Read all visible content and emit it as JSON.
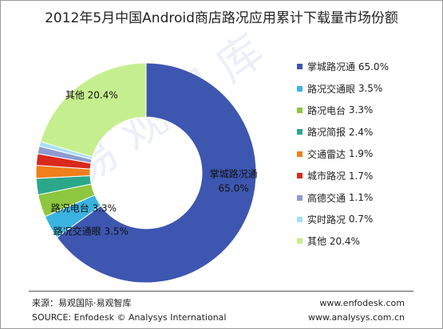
{
  "chart_data": {
    "type": "pie",
    "style": "donut",
    "title": "2012年5月中国Android商店路况应用累计下载量市场份额",
    "slices": [
      {
        "name": "掌城路况通",
        "value": 65.0,
        "label": "65.0%",
        "color": "#3D56B0"
      },
      {
        "name": "路况交通眼",
        "value": 3.5,
        "label": "3.5%",
        "color": "#3BB3E0"
      },
      {
        "name": "路况电台",
        "value": 3.3,
        "label": "3.3%",
        "color": "#8DC63F"
      },
      {
        "name": "路况简报",
        "value": 2.4,
        "label": "2.4%",
        "color": "#2BA88A"
      },
      {
        "name": "交通雷达",
        "value": 1.9,
        "label": "1.9%",
        "color": "#F07F1C"
      },
      {
        "name": "城市路况",
        "value": 1.7,
        "label": "1.7%",
        "color": "#D9291C"
      },
      {
        "name": "高德交通",
        "value": 1.1,
        "label": "1.1%",
        "color": "#8E9BD1"
      },
      {
        "name": "实时路况",
        "value": 0.7,
        "label": "0.7%",
        "color": "#A6E0F5"
      },
      {
        "name": "其他",
        "value": 20.4,
        "label": "20.4%",
        "color": "#C5EF8E"
      }
    ],
    "legend_position": "right",
    "slice_labels": [
      {
        "text": "掌城路况通",
        "text2": "65.0%"
      },
      {
        "text": "路况电台 3.3%"
      },
      {
        "text": "路况交通眼 3.5%"
      },
      {
        "text": "其他 20.4%"
      }
    ]
  },
  "footer": {
    "source_cn": "来源：易观国际·易观智库",
    "source_en": "SOURCE: Enfodesk © Analysys International",
    "url1": "www.enfodesk.com",
    "url2": "www.analysys.com.cn"
  },
  "watermark": "易观智库"
}
